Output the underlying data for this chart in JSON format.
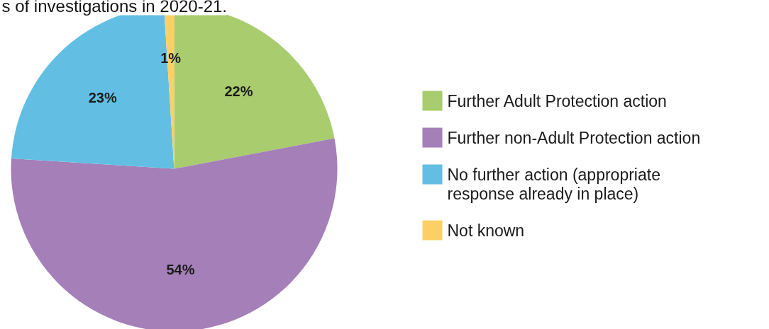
{
  "chart_data": {
    "type": "pie",
    "title": "s of investigations in 2020-21.",
    "categories": [
      "Further Adult Protection action",
      "Further non-Adult Protection action",
      "No further action (appropriate response already in place)",
      "Not known"
    ],
    "values": [
      22,
      54,
      23,
      1
    ],
    "colors": [
      "#a8cc6e",
      "#a47fb8",
      "#62bfe3",
      "#fdd065"
    ],
    "value_labels": [
      "22%",
      "54%",
      "23%",
      "1%"
    ],
    "legend": "right"
  }
}
